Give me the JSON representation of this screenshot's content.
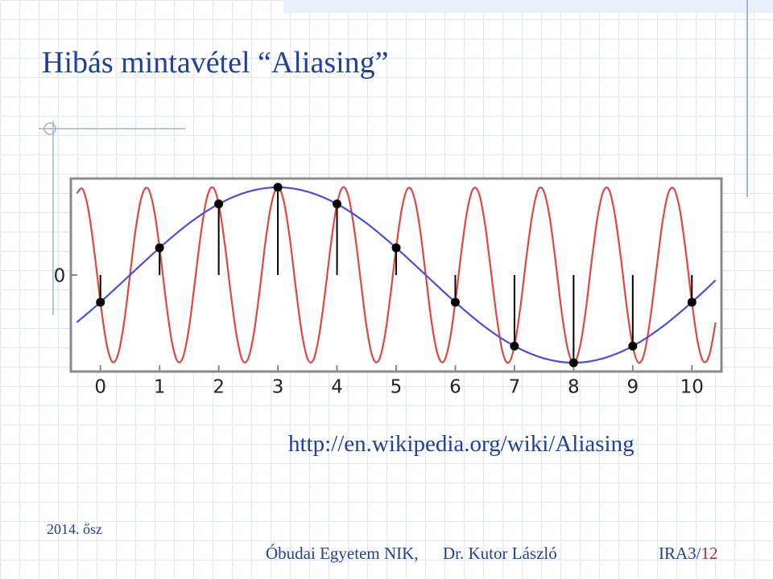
{
  "header": {
    "title": "Hibás mintavétel  “Aliasing”"
  },
  "chart_data": {
    "type": "line",
    "xlim": [
      -0.5,
      10.5
    ],
    "ylim": [
      -1.1,
      1.1
    ],
    "xticks": [
      0,
      1,
      2,
      3,
      4,
      5,
      6,
      7,
      8,
      9,
      10
    ],
    "yticks": [
      0
    ],
    "series": [
      {
        "color": "#e8433c",
        "x": [
          -0.4,
          -0.3,
          -0.2,
          -0.1,
          0,
          0.1,
          0.2,
          0.3,
          0.4,
          0.5,
          0.6,
          0.7,
          0.8,
          0.9,
          1,
          1.1,
          1.2,
          1.3,
          1.4,
          1.5,
          1.6,
          1.7,
          1.8,
          1.9,
          2,
          2.1,
          2.2,
          2.3,
          2.4,
          2.5,
          2.6,
          2.7,
          2.8,
          2.9,
          3,
          3.1,
          3.2,
          3.3,
          3.4,
          3.5,
          3.6,
          3.7,
          3.8,
          3.9,
          4,
          4.1,
          4.2,
          4.3,
          4.4,
          4.5,
          4.6,
          4.7,
          4.8,
          4.9,
          5,
          5.1,
          5.2,
          5.3,
          5.4,
          5.5,
          5.6,
          5.7,
          5.8,
          5.9,
          6,
          6.1,
          6.2,
          6.3,
          6.4,
          6.5,
          6.6,
          6.7,
          6.8,
          6.9,
          7,
          7.1,
          7.2,
          7.3,
          7.4,
          7.5,
          7.6,
          7.7,
          7.8,
          7.9,
          8,
          8.1,
          8.2,
          8.3,
          8.4,
          8.5,
          8.6,
          8.7,
          8.8,
          8.9,
          9,
          9.1,
          9.2,
          9.3,
          9.4,
          9.5,
          9.6,
          9.7,
          9.8,
          9.9,
          10,
          10.1,
          10.2,
          10.3,
          10.4
        ],
        "values": [
          0.93,
          0.98,
          0.73,
          0.25,
          -0.31,
          -0.77,
          -0.99,
          -0.9,
          -0.54,
          0,
          0.54,
          0.9,
          0.99,
          0.77,
          0.31,
          -0.25,
          -0.73,
          -0.98,
          -0.93,
          -0.59,
          -0.06,
          0.48,
          0.88,
          1,
          0.81,
          0.37,
          -0.19,
          -0.68,
          -0.97,
          -0.95,
          -0.64,
          -0.13,
          0.43,
          0.84,
          1,
          0.84,
          0.43,
          -0.13,
          -0.64,
          -0.95,
          -0.97,
          -0.68,
          -0.19,
          0.37,
          0.81,
          1,
          0.88,
          0.48,
          -0.06,
          -0.59,
          -0.93,
          -0.98,
          -0.73,
          -0.25,
          0.31,
          0.77,
          0.99,
          0.9,
          0.54,
          0,
          -0.54,
          -0.9,
          -0.99,
          -0.77,
          -0.31,
          0.25,
          0.73,
          0.98,
          0.93,
          0.59,
          0.06,
          -0.48,
          -0.88,
          -1,
          -0.81,
          -0.37,
          0.19,
          0.68,
          0.97,
          0.95,
          0.64,
          0.13,
          -0.43,
          -0.84,
          -1,
          -0.84,
          -0.43,
          0.13,
          0.64,
          0.95,
          0.97,
          0.68,
          0.19,
          -0.37,
          -0.81,
          -1,
          -0.88,
          -0.48,
          0.06,
          0.59,
          0.93,
          0.98,
          0.73,
          0.25,
          -0.31,
          -0.77,
          -0.99,
          -0.9,
          -0.54
        ]
      },
      {
        "color": "#4a4af0",
        "x": [
          -0.4,
          0,
          0.5,
          1,
          1.5,
          2,
          2.5,
          3,
          3.5,
          4,
          4.5,
          5,
          5.5,
          6,
          6.5,
          7,
          7.5,
          8,
          8.5,
          9,
          9.5,
          10,
          10.4
        ],
        "values": [
          -0.54,
          -0.31,
          0,
          0.31,
          0.59,
          0.81,
          0.95,
          1,
          0.95,
          0.81,
          0.59,
          0.31,
          0,
          -0.31,
          -0.59,
          -0.81,
          -0.95,
          -1,
          -0.95,
          -0.81,
          -0.59,
          -0.31,
          -0.06
        ]
      },
      {
        "color": "#000000",
        "style": "stem",
        "x": [
          0,
          1,
          2,
          3,
          4,
          5,
          6,
          7,
          8,
          9,
          10
        ],
        "values": [
          -0.31,
          0.31,
          0.81,
          1,
          0.81,
          0.31,
          -0.31,
          -0.81,
          -1,
          -0.81,
          -0.31
        ]
      }
    ]
  },
  "link": "http://en.wikipedia.org/wiki/Aliasing",
  "footer": {
    "date": "2014. ősz",
    "institution": "Óbudai Egyetem NIK,",
    "author": "Dr. Kutor László",
    "course": "IRA3/",
    "page": "12"
  }
}
